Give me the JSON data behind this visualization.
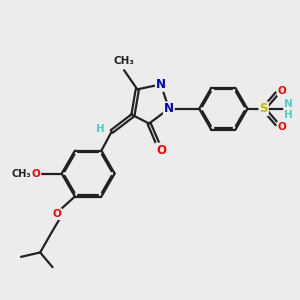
{
  "bg_color": "#ececec",
  "bond_color": "#222222",
  "bond_lw": 1.6,
  "dbl_sep": 0.055,
  "atom_colors": {
    "O": "#ff0000",
    "N": "#0000cc",
    "S": "#bbbb00",
    "H_teal": "#4dcfcf",
    "default": "#222222"
  },
  "fs": 8.5,
  "fs_sm": 7.5,
  "xlim": [
    0,
    10
  ],
  "ylim": [
    0,
    10
  ]
}
